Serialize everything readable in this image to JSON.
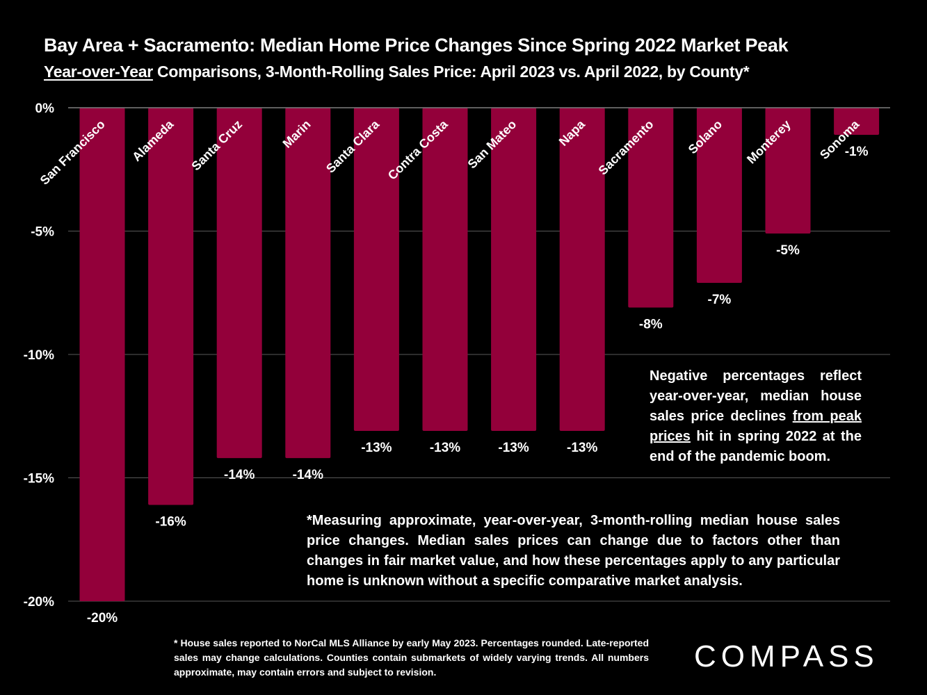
{
  "header": {
    "title": "Bay Area + Sacramento: Median Home Price Changes Since Spring 2022 Market Peak",
    "subtitle_underlined": "Year-over-Year",
    "subtitle_rest": " Comparisons, 3-Month-Rolling Sales Price: April 2023 vs. April 2022, by County*"
  },
  "chart_data": {
    "type": "bar",
    "categories": [
      "San Francisco",
      "Alameda",
      "Santa Cruz",
      "Marin",
      "Santa Clara",
      "Contra Costa",
      "San Mateo",
      "Napa",
      "Sacramento",
      "Solano",
      "Monterey",
      "Sonoma"
    ],
    "values": [
      -20,
      -16.1,
      -14.2,
      -14.2,
      -13.1,
      -13.1,
      -13.1,
      -13.1,
      -8.1,
      -7.1,
      -5.1,
      -1.1
    ],
    "data_labels": [
      "-20%",
      "-16%",
      "-14%",
      "-14%",
      "-13%",
      "-13%",
      "-13%",
      "-13%",
      "-8%",
      "-7%",
      "-5%",
      "-1%"
    ],
    "yticks": [
      0,
      -5,
      -10,
      -15,
      -20
    ],
    "ytick_labels": [
      "0%",
      "-5%",
      "-10%",
      "-15%",
      "-20%"
    ],
    "ylim": [
      -20,
      0
    ],
    "grid": true,
    "bar_color": "#93003a",
    "title": "Bay Area + Sacramento: Median Home Price Changes Since Spring 2022 Market Peak"
  },
  "notes": {
    "note1_before": "Negative percentages reflect year-over-year, median house sales price declines ",
    "note1_underlined": "from peak prices",
    "note1_after": " hit in spring 2022 at the end of the pandemic boom.",
    "note2": "*Measuring approximate, year-over-year, 3-month-rolling median house sales price changes. Median sales prices can change due to factors other than changes in fair market value, and how these percentages apply to any particular home is unknown without a specific comparative market analysis."
  },
  "footnote": "* House sales reported to NorCal MLS Alliance by early May 2023. Percentages rounded. Late-reported sales may change calculations. Counties contain submarkets of widely varying trends. All numbers approximate, may contain errors and subject to revision.",
  "logo": "COMPASS"
}
